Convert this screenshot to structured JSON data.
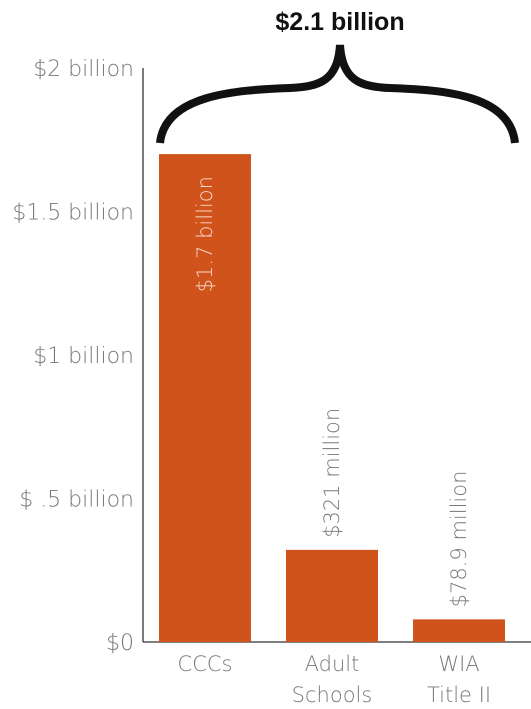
{
  "chart_data": {
    "type": "bar",
    "title": "",
    "xlabel": "",
    "ylabel": "",
    "categories": [
      [
        "CCCs"
      ],
      [
        "Adult",
        "Schools"
      ],
      [
        "WIA",
        "Title II"
      ]
    ],
    "values": [
      1.7,
      0.321,
      0.0789
    ],
    "value_labels": [
      "$1.7 billion",
      "$321 million",
      "$78.9 million"
    ],
    "ylim": [
      0,
      2
    ],
    "yticks": [
      {
        "value": 0,
        "label": "$0"
      },
      {
        "value": 0.5,
        "label": "$ .5 billion"
      },
      {
        "value": 1,
        "label": "$1 billion"
      },
      {
        "value": 1.5,
        "label": "$1.5 billion"
      },
      {
        "value": 2,
        "label": "$2 billion"
      }
    ],
    "annotation": {
      "text": "$2.1 billion",
      "type": "brace spanning all bars"
    },
    "grid": false,
    "legend": "none",
    "colors": {
      "bar": "#d0531c",
      "axis": "#333333",
      "brace": "#111111"
    }
  }
}
